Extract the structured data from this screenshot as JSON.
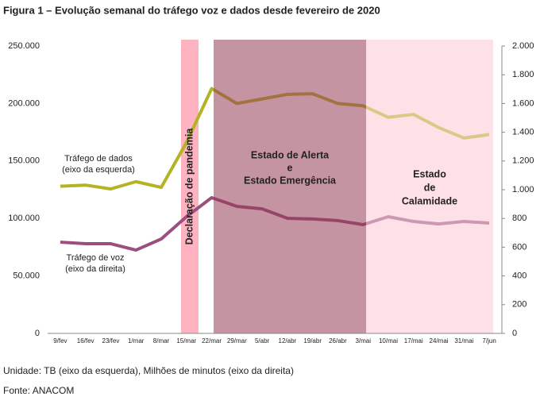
{
  "chart_data": {
    "type": "line",
    "title": "Figura 1 – Evolução semanal do tráfego voz e dados desde fevereiro de 2020",
    "categories": [
      "9/fev",
      "16/fev",
      "23/fev",
      "1/mar",
      "8/mar",
      "15/mar",
      "22/mar",
      "29/mar",
      "5/abr",
      "12/abr",
      "19/abr",
      "26/abr",
      "3/mai",
      "10/mai",
      "17/mai",
      "24/mai",
      "31/mai",
      "7/jun"
    ],
    "series": [
      {
        "name": "Tráfego de dados",
        "color": "#b3b324",
        "values": [
          128000,
          129000,
          125700,
          132000,
          127000,
          166000,
          213000,
          200000,
          204000,
          208000,
          208500,
          200000,
          198000,
          188000,
          190500,
          179000,
          170000,
          173000
        ]
      },
      {
        "name": "Tráfego de voz",
        "color": "#9c4f7c",
        "axis": "y2",
        "values": [
          635,
          624,
          624,
          580,
          657,
          812,
          945,
          884,
          867,
          801,
          796,
          785,
          757,
          812,
          779,
          762,
          779,
          768
        ]
      }
    ],
    "ylim": [
      0,
      250000
    ],
    "yticks": [
      0,
      {
        "value": 50000,
        "label": "50.000"
      },
      {
        "value": 100000,
        "label": "100.000"
      },
      {
        "value": 150000,
        "label": "150.000"
      },
      {
        "value": 200000,
        "label": "200.000"
      },
      {
        "value": 250000,
        "label": "250.000"
      }
    ],
    "y2lim": [
      0,
      2000
    ],
    "y2ticks": [
      0,
      200,
      400,
      600,
      800,
      {
        "value": 1000,
        "label": "1.000"
      },
      {
        "value": 1200,
        "label": "1.200"
      },
      {
        "value": 1400,
        "label": "1.400"
      },
      {
        "value": 1600,
        "label": "1.600"
      },
      {
        "value": 1800,
        "label": "1.800"
      },
      {
        "value": 2000,
        "label": "2.000"
      }
    ],
    "grid": false,
    "annotations": {
      "dados": [
        "Tráfego de dados",
        "(eixo da esquerda)"
      ],
      "voz": [
        "Tráfego de voz",
        "(eixo da direita)"
      ],
      "pandemia": "Declaração de pandemia",
      "alerta": [
        "Estado de Alerta",
        "e",
        "Estado Emergência"
      ],
      "calamidade": [
        "Estado",
        "de",
        "Calamidade"
      ]
    },
    "notes": [
      "Unidade: TB (eixo da esquerda), Milhões de minutos (eixo da direita)",
      "Fonte: ANACOM"
    ]
  }
}
